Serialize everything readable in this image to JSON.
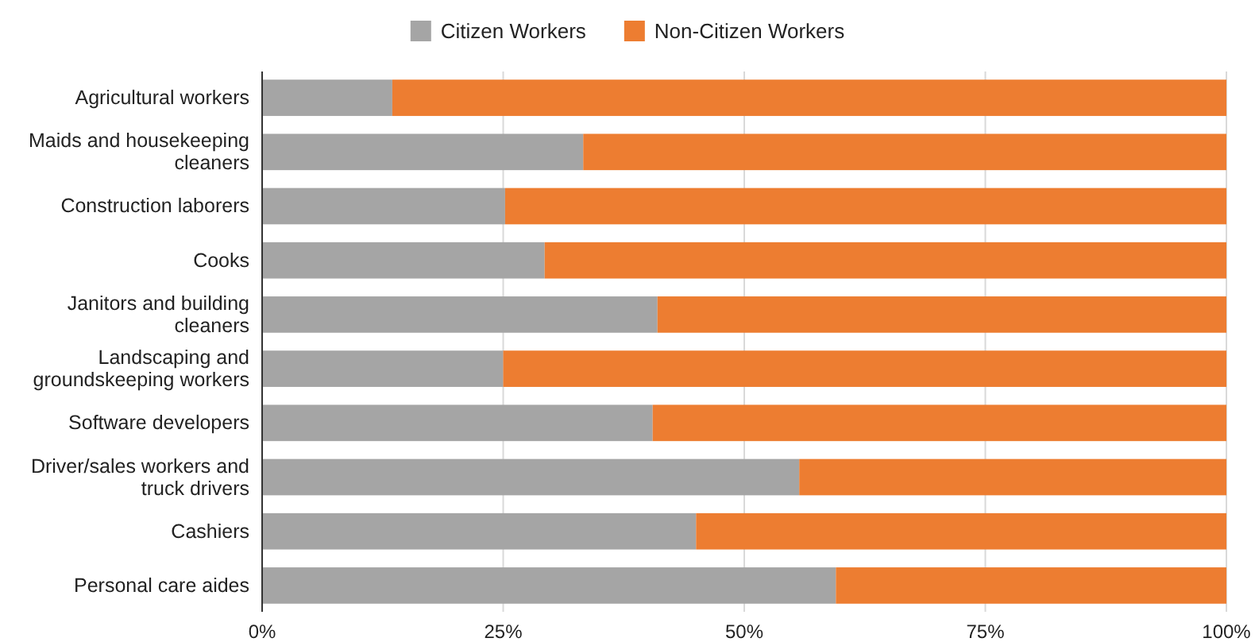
{
  "chart_data": {
    "type": "bar",
    "orientation": "horizontal",
    "stacked": true,
    "categories": [
      "Agricultural workers",
      "Maids and housekeeping cleaners",
      "Construction laborers",
      "Cooks",
      "Janitors and building cleaners",
      "Landscaping and groundskeeping workers",
      "Software developers",
      "Driver/sales workers and truck drivers",
      "Cashiers",
      "Personal care aides"
    ],
    "series": [
      {
        "name": "Citizen Workers",
        "color": "#a5a5a5",
        "values": [
          13.5,
          33.3,
          25.2,
          29.3,
          41.0,
          25.0,
          40.5,
          55.7,
          45.0,
          59.5
        ]
      },
      {
        "name": "Non-Citizen Workers",
        "color": "#ed7d31",
        "values": [
          86.5,
          66.7,
          74.8,
          70.7,
          59.0,
          75.0,
          59.5,
          44.3,
          55.0,
          40.5
        ]
      }
    ],
    "xlim": [
      0,
      100
    ],
    "xticks": [
      {
        "value": 0,
        "label": "0%"
      },
      {
        "value": 25,
        "label": "25%"
      },
      {
        "value": 50,
        "label": "50%"
      },
      {
        "value": 75,
        "label": "75%"
      },
      {
        "value": 100,
        "label": "100%"
      }
    ],
    "grid": "x",
    "legend": "top"
  }
}
